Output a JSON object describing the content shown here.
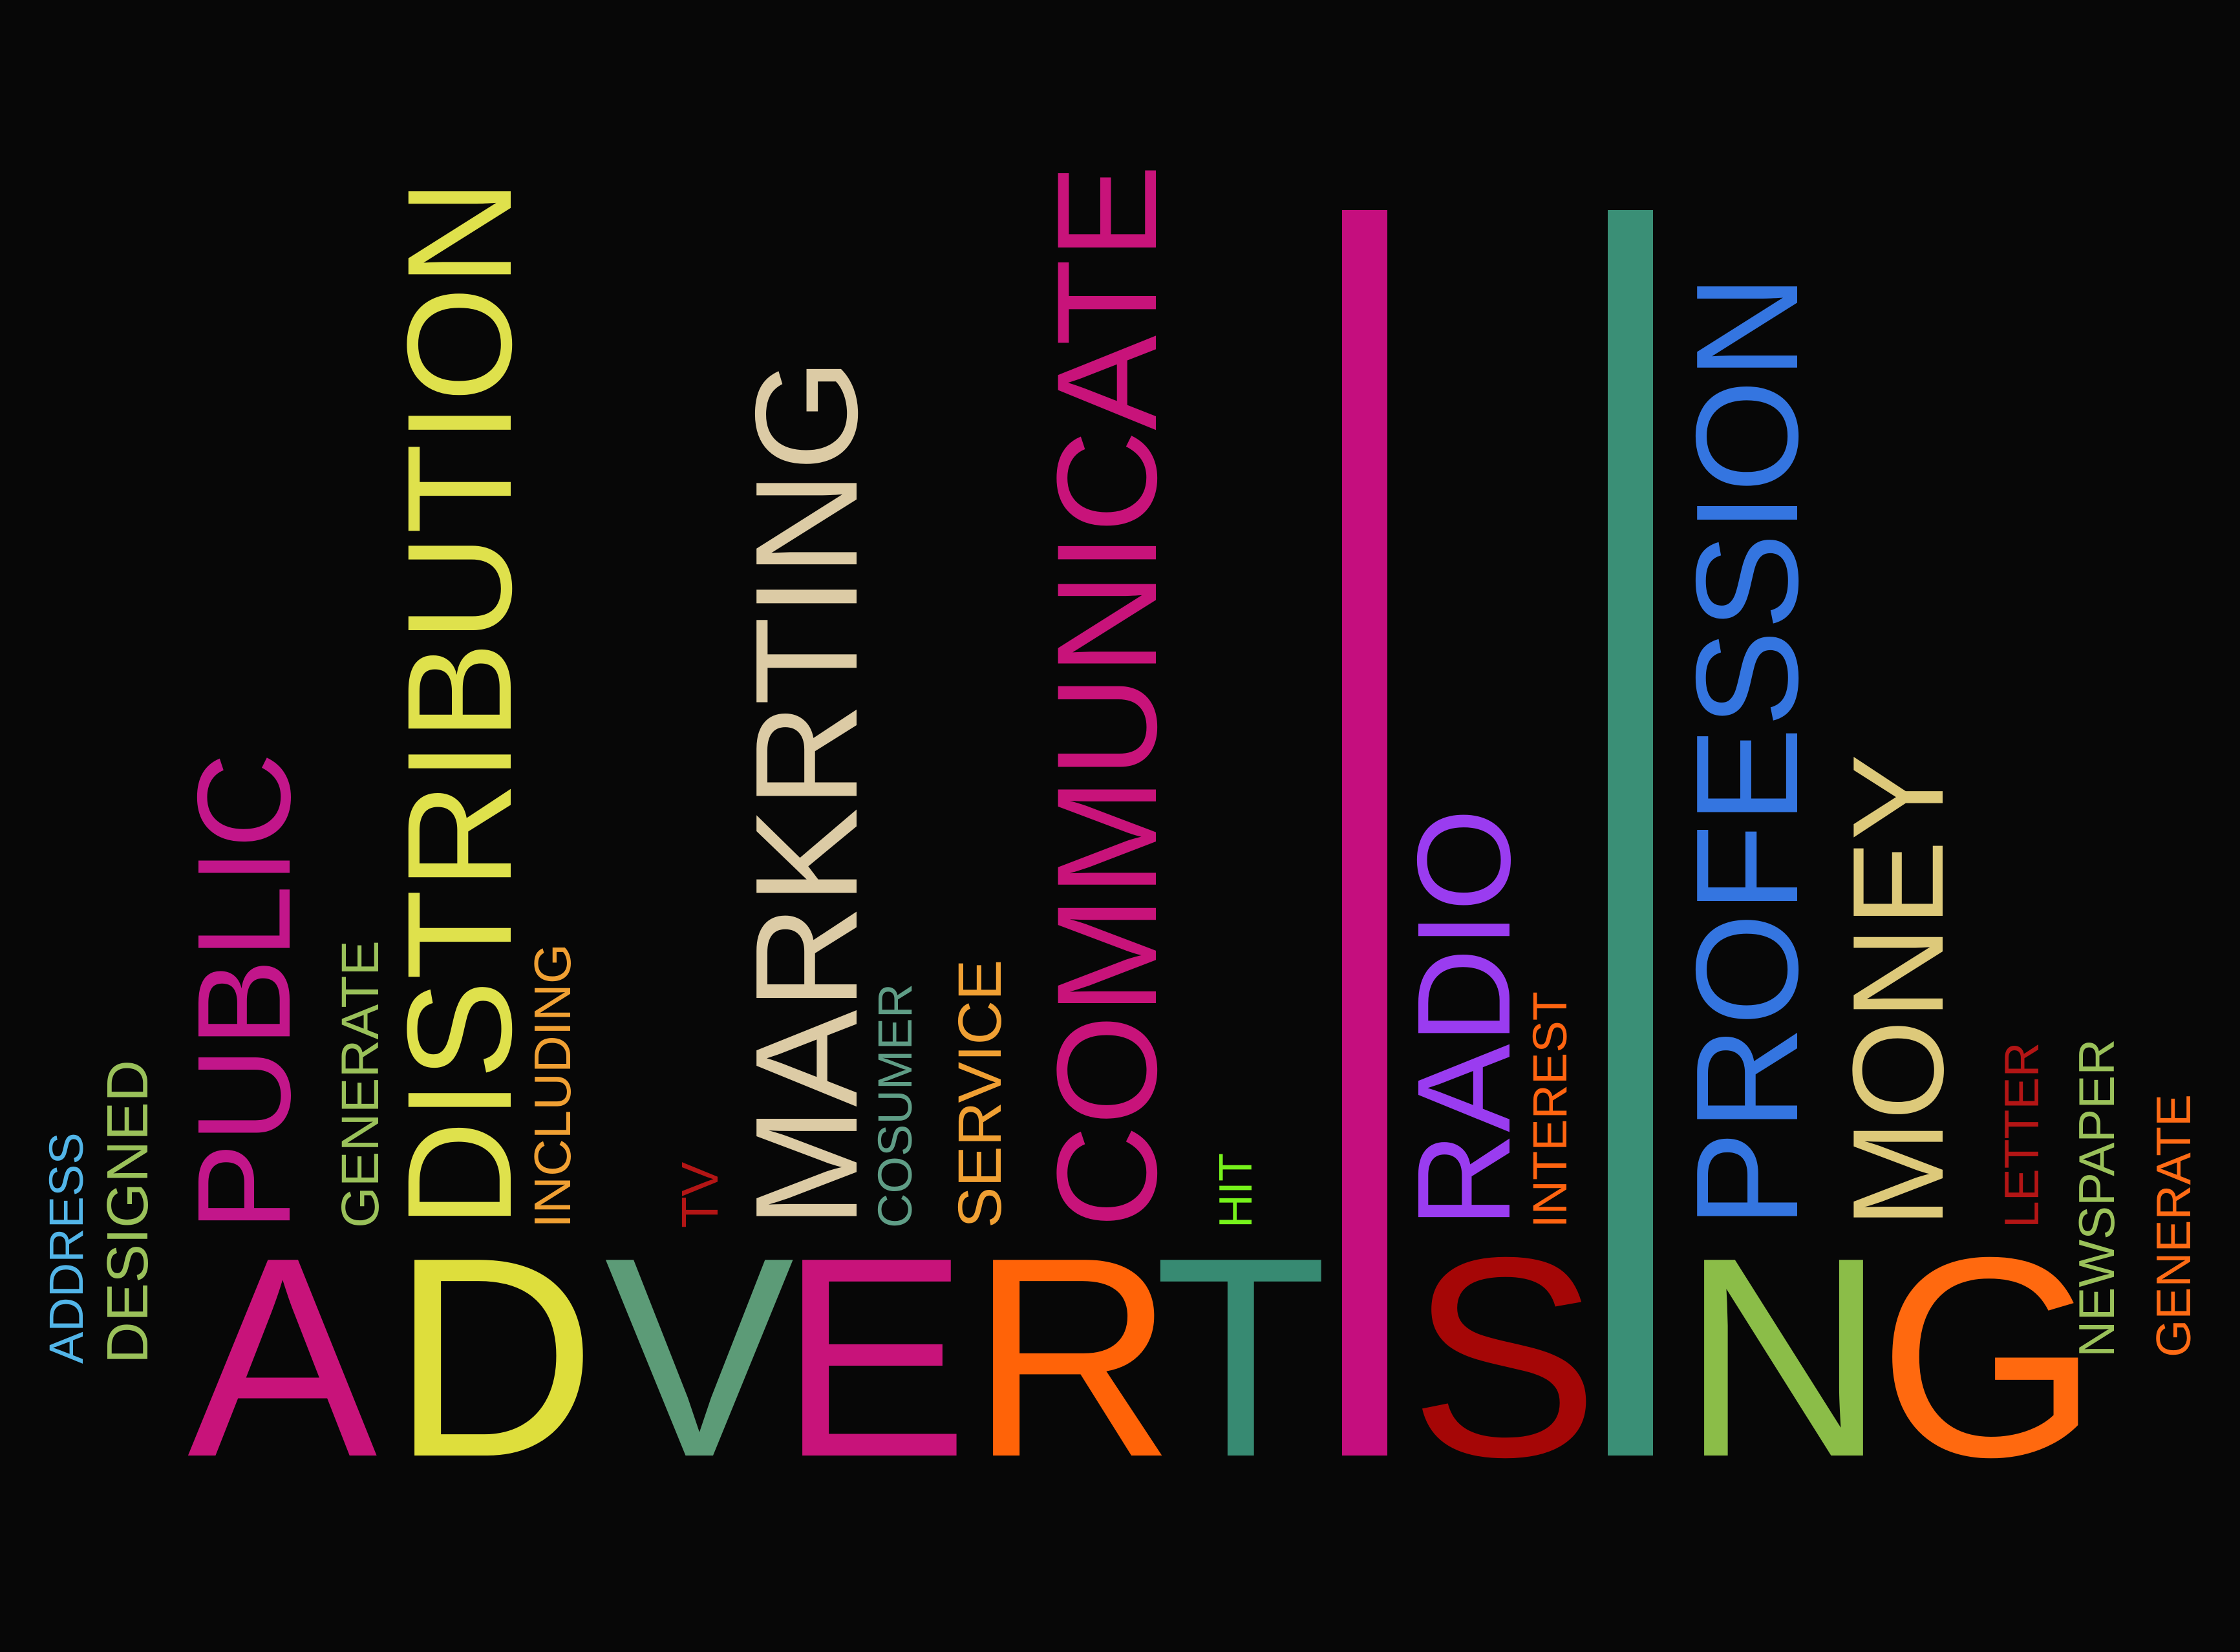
{
  "main_word": {
    "letters": [
      {
        "text": "A",
        "color": "#c8137a"
      },
      {
        "text": "D",
        "color": "#dede3c"
      },
      {
        "text": "V",
        "color": "#5c9b77"
      },
      {
        "text": "E",
        "color": "#c8137a"
      },
      {
        "text": "R",
        "color": "#ff6308"
      },
      {
        "text": "T",
        "color": "#378a72"
      },
      {
        "text": "I",
        "color": "#c50e7e"
      },
      {
        "text": "S",
        "color": "#a50606"
      },
      {
        "text": "I",
        "color": "#3a8f76"
      },
      {
        "text": "N",
        "color": "#8bbd48"
      },
      {
        "text": "G",
        "color": "#ff690f"
      }
    ]
  },
  "words": [
    {
      "text": "ADDRESS",
      "color": "#52b5e8"
    },
    {
      "text": "DESIGNED",
      "color": "#9ac15a"
    },
    {
      "text": "PUBLIC",
      "color": "#c2168a"
    },
    {
      "text": "GENERATE",
      "color": "#9ac15a"
    },
    {
      "text": "DISTRIBUTION",
      "color": "#dfe14c"
    },
    {
      "text": "INCLUDING",
      "color": "#f0a033"
    },
    {
      "text": "TV",
      "color": "#b31515"
    },
    {
      "text": "MARKRTING",
      "color": "#dccba5"
    },
    {
      "text": "COSUMER",
      "color": "#5f9d86"
    },
    {
      "text": "SERVICE",
      "color": "#f0a033"
    },
    {
      "text": "COMMUNICATE",
      "color": "#c8137a"
    },
    {
      "text": "HIT",
      "color": "#76f21b"
    },
    {
      "text": "RADIO",
      "color": "#9a3cf0"
    },
    {
      "text": "INTEREST",
      "color": "#ff6410"
    },
    {
      "text": "PROFESSION",
      "color": "#3475e0"
    },
    {
      "text": "MONEY",
      "color": "#ddc97a"
    },
    {
      "text": "LETTER",
      "color": "#b31515"
    },
    {
      "text": "NEWSPAPER",
      "color": "#9ac15a"
    },
    {
      "text": "GENERATE",
      "color": "#ff6b15"
    }
  ]
}
